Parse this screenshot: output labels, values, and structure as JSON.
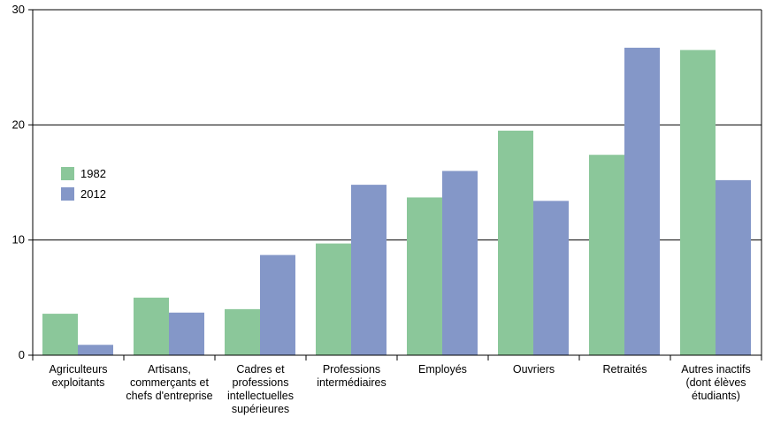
{
  "chart_data": {
    "type": "bar",
    "categories": [
      [
        "Agriculteurs",
        "exploitants"
      ],
      [
        "Artisans,",
        "commerçants et",
        "chefs d'entreprise"
      ],
      [
        "Cadres et",
        "professions",
        "intellectuelles",
        "supérieures"
      ],
      [
        "Professions",
        "intermédiaires"
      ],
      [
        "Employés"
      ],
      [
        "Ouvriers"
      ],
      [
        "Retraités"
      ],
      [
        "Autres inactifs",
        "(dont élèves",
        "étudiants)"
      ]
    ],
    "series": [
      {
        "name": "1982",
        "color": "#8bc79a",
        "values": [
          3.6,
          5.0,
          4.0,
          9.7,
          13.7,
          19.5,
          17.4,
          26.5
        ]
      },
      {
        "name": "2012",
        "color": "#8497c8",
        "values": [
          0.9,
          3.7,
          8.7,
          14.8,
          16.0,
          13.4,
          26.7,
          15.2
        ]
      }
    ],
    "ylim": [
      0,
      30
    ],
    "yticks": [
      "0",
      "10",
      "20",
      "30"
    ],
    "grid": true,
    "legend_position": "left"
  }
}
